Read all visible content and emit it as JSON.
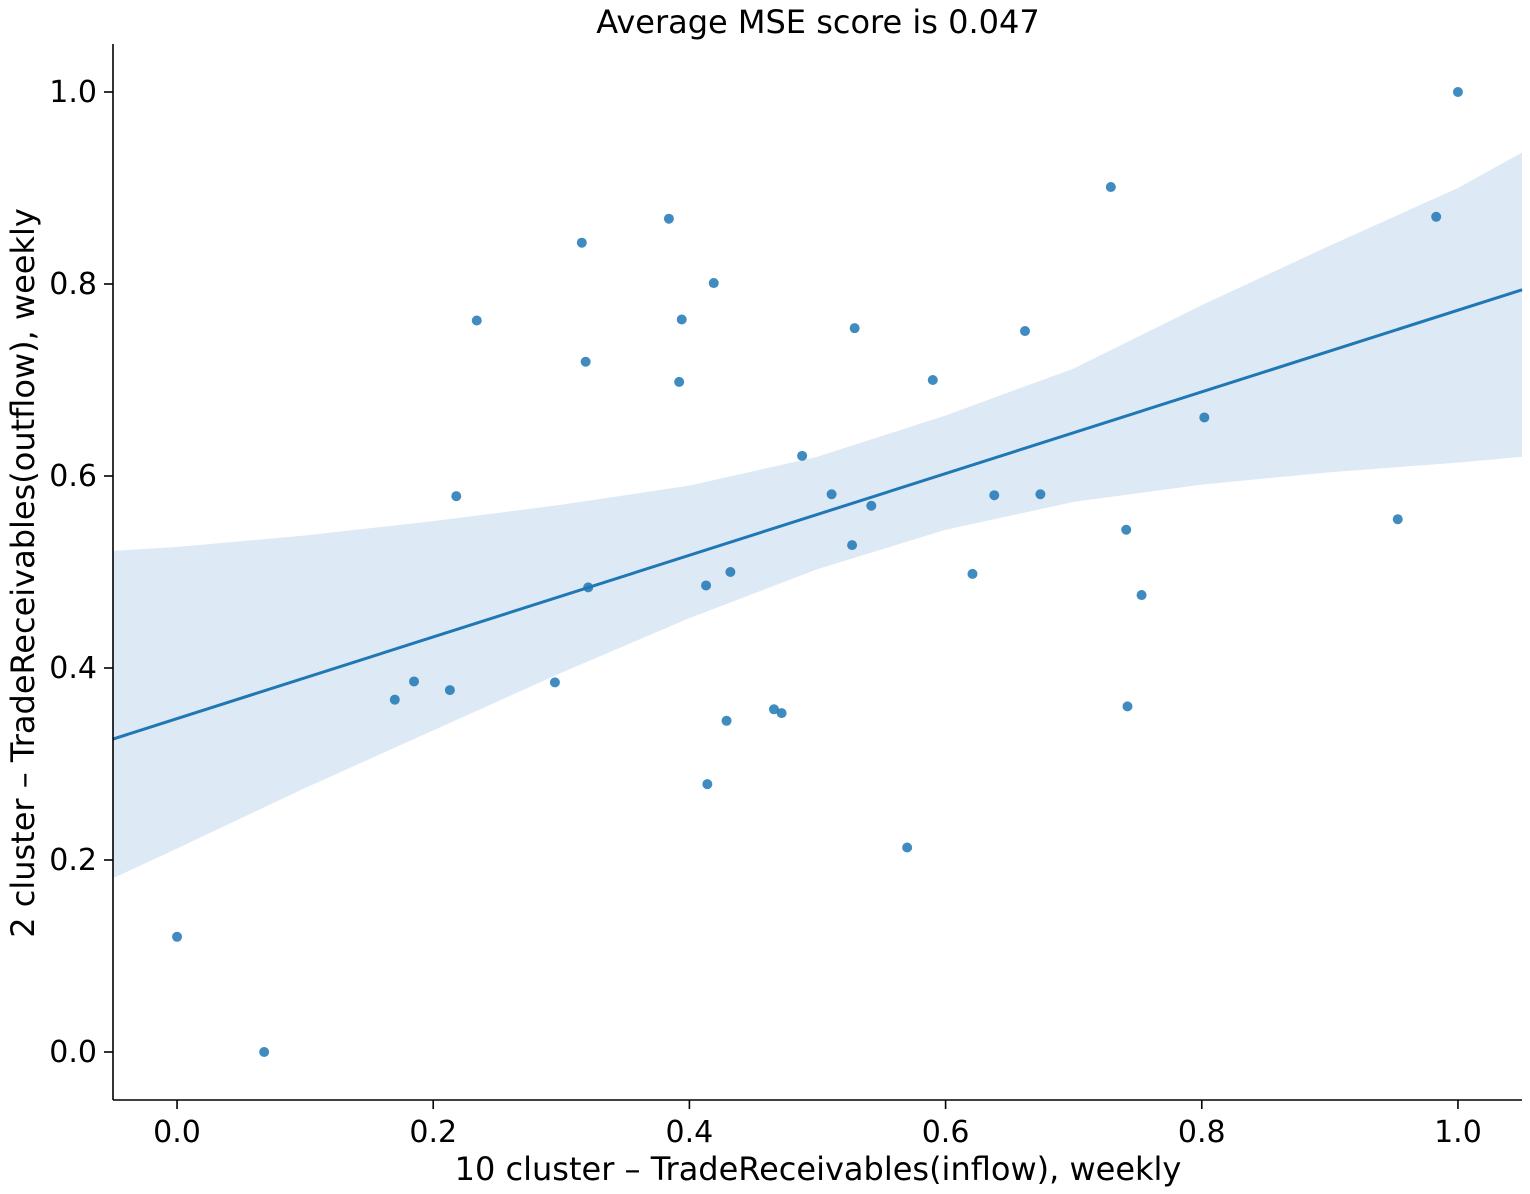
{
  "chart_data": {
    "type": "scatter",
    "title": "Average MSE score is 0.047",
    "xlabel": "10 cluster – TradeReceivables(inflow), weekly",
    "ylabel": "2 cluster – TradeReceivables(outflow), weekly",
    "xlim": [
      -0.05,
      1.05
    ],
    "ylim": [
      -0.05,
      1.05
    ],
    "xticks": [
      0.0,
      0.2,
      0.4,
      0.6,
      0.8,
      1.0
    ],
    "yticks": [
      0.0,
      0.2,
      0.4,
      0.6,
      0.8,
      1.0
    ],
    "xtick_labels": [
      "0.0",
      "0.2",
      "0.4",
      "0.6",
      "0.8",
      "1.0"
    ],
    "ytick_labels": [
      "0.0",
      "0.2",
      "0.4",
      "0.6",
      "0.8",
      "1.0"
    ],
    "grid": false,
    "point_color": "#1f77b4",
    "band_color": "#dde9f5",
    "points": [
      {
        "x": 0.0,
        "y": 0.12
      },
      {
        "x": 0.068,
        "y": 0.0
      },
      {
        "x": 0.17,
        "y": 0.367
      },
      {
        "x": 0.185,
        "y": 0.386
      },
      {
        "x": 0.213,
        "y": 0.377
      },
      {
        "x": 0.218,
        "y": 0.579
      },
      {
        "x": 0.234,
        "y": 0.762
      },
      {
        "x": 0.295,
        "y": 0.385
      },
      {
        "x": 0.316,
        "y": 0.843
      },
      {
        "x": 0.319,
        "y": 0.719
      },
      {
        "x": 0.321,
        "y": 0.484
      },
      {
        "x": 0.384,
        "y": 0.868
      },
      {
        "x": 0.392,
        "y": 0.698
      },
      {
        "x": 0.394,
        "y": 0.763
      },
      {
        "x": 0.413,
        "y": 0.486
      },
      {
        "x": 0.414,
        "y": 0.279
      },
      {
        "x": 0.419,
        "y": 0.801
      },
      {
        "x": 0.429,
        "y": 0.345
      },
      {
        "x": 0.432,
        "y": 0.5
      },
      {
        "x": 0.466,
        "y": 0.357
      },
      {
        "x": 0.472,
        "y": 0.353
      },
      {
        "x": 0.488,
        "y": 0.621
      },
      {
        "x": 0.511,
        "y": 0.581
      },
      {
        "x": 0.527,
        "y": 0.528
      },
      {
        "x": 0.529,
        "y": 0.754
      },
      {
        "x": 0.542,
        "y": 0.569
      },
      {
        "x": 0.57,
        "y": 0.213
      },
      {
        "x": 0.59,
        "y": 0.7
      },
      {
        "x": 0.621,
        "y": 0.498
      },
      {
        "x": 0.638,
        "y": 0.58
      },
      {
        "x": 0.662,
        "y": 0.751
      },
      {
        "x": 0.674,
        "y": 0.581
      },
      {
        "x": 0.729,
        "y": 0.901
      },
      {
        "x": 0.741,
        "y": 0.544
      },
      {
        "x": 0.742,
        "y": 0.36
      },
      {
        "x": 0.753,
        "y": 0.476
      },
      {
        "x": 0.802,
        "y": 0.661
      },
      {
        "x": 0.953,
        "y": 0.555
      },
      {
        "x": 0.983,
        "y": 0.87
      },
      {
        "x": 1.0,
        "y": 1.0
      }
    ],
    "regression_line": {
      "x": [
        -0.05,
        1.05
      ],
      "y": [
        0.326,
        0.794
      ],
      "color": "#1f77b4"
    },
    "confidence_band": {
      "x": [
        -0.05,
        0.0,
        0.1,
        0.2,
        0.3,
        0.4,
        0.5,
        0.6,
        0.7,
        0.8,
        0.9,
        1.0,
        1.05
      ],
      "lower": [
        0.181,
        0.212,
        0.275,
        0.335,
        0.395,
        0.452,
        0.503,
        0.544,
        0.573,
        0.591,
        0.604,
        0.614,
        0.62
      ],
      "upper": [
        0.522,
        0.526,
        0.538,
        0.553,
        0.57,
        0.59,
        0.62,
        0.663,
        0.712,
        0.778,
        0.84,
        0.9,
        0.937
      ]
    }
  }
}
